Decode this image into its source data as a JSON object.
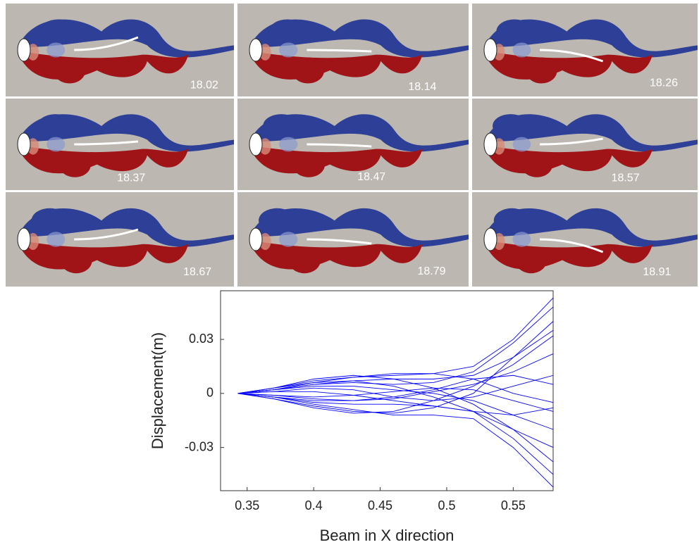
{
  "panels": [
    "18.02",
    "18.14",
    "18.26",
    "18.37",
    "18.47",
    "18.57",
    "18.67",
    "18.79",
    "18.91"
  ],
  "chart_data": {
    "type": "line",
    "xlabel": "Beam in X direction",
    "ylabel": "Displacement(m)",
    "color": "#0000ff",
    "x": [
      0.343,
      0.37,
      0.4,
      0.43,
      0.46,
      0.49,
      0.52,
      0.55,
      0.58
    ],
    "xlim": [
      0.33,
      0.58
    ],
    "xticks": [
      0.35,
      0.4,
      0.45,
      0.5,
      0.55
    ],
    "ylim": [
      -0.054,
      0.057
    ],
    "yticks": [
      -0.03,
      0,
      0.03
    ],
    "series": [
      {
        "values": [
          0,
          0.003,
          0.007,
          0.009,
          0.01,
          0.011,
          0.015,
          0.03,
          0.053
        ]
      },
      {
        "values": [
          0,
          0.002,
          0.005,
          0.006,
          0.005,
          0.006,
          0.012,
          0.028,
          0.048
        ]
      },
      {
        "values": [
          0,
          -0.003,
          -0.007,
          -0.01,
          -0.011,
          -0.008,
          0.0,
          0.02,
          0.04
        ]
      },
      {
        "values": [
          0,
          0.003,
          0.006,
          0.007,
          0.004,
          -0.002,
          -0.01,
          -0.025,
          -0.045
        ]
      },
      {
        "values": [
          0,
          -0.002,
          -0.006,
          -0.009,
          -0.012,
          -0.012,
          -0.014,
          -0.03,
          -0.052
        ]
      },
      {
        "values": [
          0,
          0.001,
          0.003,
          0.002,
          -0.002,
          -0.004,
          -0.002,
          0.004,
          0.01
        ]
      },
      {
        "values": [
          0,
          -0.001,
          -0.003,
          -0.004,
          -0.003,
          0.001,
          0.005,
          0.012,
          0.022
        ]
      },
      {
        "values": [
          0,
          0.002,
          0.004,
          0.004,
          0.002,
          0.0,
          -0.004,
          -0.012,
          -0.02
        ]
      },
      {
        "values": [
          0,
          -0.003,
          -0.008,
          -0.011,
          -0.01,
          -0.004,
          0.004,
          0.016,
          0.032
        ]
      },
      {
        "values": [
          0,
          0.003,
          0.008,
          0.01,
          0.008,
          0.003,
          -0.006,
          -0.02,
          -0.038
        ]
      },
      {
        "values": [
          0,
          -0.001,
          -0.002,
          -0.001,
          0.001,
          0.003,
          0.002,
          -0.004,
          -0.01
        ]
      },
      {
        "values": [
          0,
          0.002,
          0.005,
          0.007,
          0.008,
          0.008,
          0.01,
          0.02,
          0.035
        ]
      },
      {
        "values": [
          0,
          -0.002,
          -0.005,
          -0.006,
          -0.006,
          -0.007,
          -0.01,
          -0.02,
          -0.03
        ]
      },
      {
        "values": [
          0,
          0.001,
          0.001,
          -0.001,
          -0.004,
          -0.007,
          -0.01,
          -0.012,
          -0.008
        ]
      },
      {
        "values": [
          0,
          -0.002,
          -0.004,
          -0.004,
          -0.002,
          0.002,
          0.008,
          0.01,
          0.005
        ]
      },
      {
        "values": [
          0,
          0.002,
          0.006,
          0.009,
          0.011,
          0.011,
          0.008,
          0.0,
          -0.005
        ]
      }
    ]
  }
}
